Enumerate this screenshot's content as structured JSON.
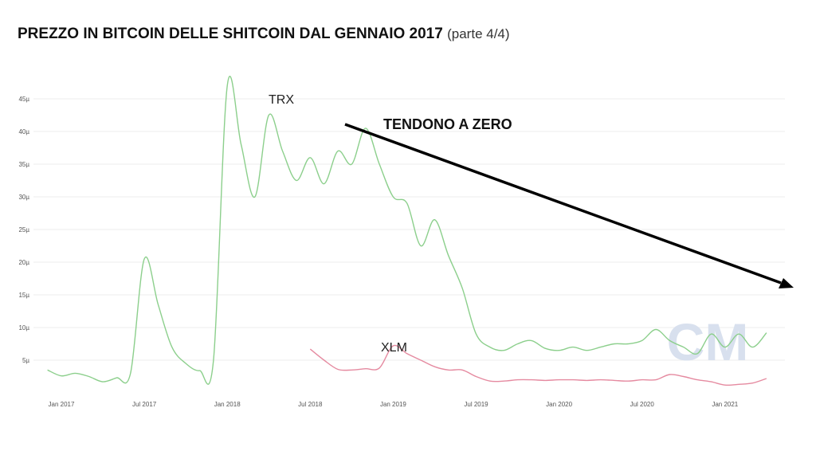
{
  "title": {
    "main": "PREZZO IN BITCOIN DELLE SHITCOIN DAL GENNAIO 2017",
    "sub": "(parte 4/4)"
  },
  "colors": {
    "trx": "#8ccf8c",
    "xlm": "#e58aa0",
    "grid": "#eeeeee",
    "axis_text": "#555555",
    "arrow": "#000000",
    "watermark": "#d8e0ee"
  },
  "annotations": {
    "trx_label": "TRX",
    "xlm_label": "XLM",
    "arrow_label": "TENDONO A ZERO",
    "watermark": "CM"
  },
  "chart_data": {
    "type": "line",
    "x_ticks": [
      "Jan 2017",
      "Jul 2017",
      "Jan 2018",
      "Jul 2018",
      "Jan 2019",
      "Jul 2019",
      "Jan 2020",
      "Jul 2020",
      "Jan 2021"
    ],
    "y_ticks": [
      "5µ",
      "10µ",
      "15µ",
      "20µ",
      "25µ",
      "30µ",
      "35µ",
      "40µ",
      "45µ"
    ],
    "ylim": [
      0,
      47
    ],
    "grid": true,
    "x": [
      "2016-12",
      "2017-01",
      "2017-02",
      "2017-03",
      "2017-04",
      "2017-05",
      "2017-06",
      "2017-07",
      "2017-08",
      "2017-09",
      "2017-10",
      "2017-11",
      "2017-12",
      "2018-01",
      "2018-02",
      "2018-03",
      "2018-04",
      "2018-05",
      "2018-06",
      "2018-07",
      "2018-08",
      "2018-09",
      "2018-10",
      "2018-11",
      "2018-12",
      "2019-01",
      "2019-02",
      "2019-03",
      "2019-04",
      "2019-05",
      "2019-06",
      "2019-07",
      "2019-08",
      "2019-09",
      "2019-10",
      "2019-11",
      "2019-12",
      "2020-01",
      "2020-02",
      "2020-03",
      "2020-04",
      "2020-05",
      "2020-06",
      "2020-07",
      "2020-08",
      "2020-09",
      "2020-10",
      "2020-11",
      "2020-12",
      "2021-01",
      "2021-02",
      "2021-03",
      "2021-04"
    ],
    "series": [
      {
        "name": "TRX",
        "values": [
          3.5,
          2.6,
          3.0,
          2.5,
          1.7,
          2.3,
          3.0,
          20.5,
          13.5,
          7.0,
          4.5,
          3.4,
          5.0,
          47.0,
          38.0,
          30.0,
          42.5,
          37.0,
          32.5,
          36.0,
          32.0,
          37.0,
          35.0,
          40.5,
          35.0,
          30.0,
          29.0,
          22.5,
          26.5,
          21.0,
          16.0,
          9.0,
          7.0,
          6.5,
          7.5,
          8.0,
          6.8,
          6.5,
          7.0,
          6.5,
          7.0,
          7.5,
          7.5,
          8.0,
          9.7,
          8.0,
          7.0,
          6.0,
          9.0,
          7.0,
          9.0,
          7.0,
          9.2
        ]
      },
      {
        "name": "XLM",
        "values": [
          null,
          null,
          null,
          null,
          null,
          null,
          null,
          null,
          null,
          null,
          null,
          null,
          null,
          null,
          null,
          null,
          null,
          null,
          null,
          6.7,
          5.0,
          3.6,
          3.5,
          3.7,
          3.8,
          7.2,
          6.0,
          5.0,
          4.0,
          3.5,
          3.5,
          2.5,
          1.8,
          1.8,
          2.0,
          2.0,
          1.9,
          2.0,
          2.0,
          1.9,
          2.0,
          1.9,
          1.8,
          2.0,
          2.0,
          2.8,
          2.5,
          2.0,
          1.7,
          1.2,
          1.3,
          1.5,
          2.2
        ]
      }
    ]
  }
}
